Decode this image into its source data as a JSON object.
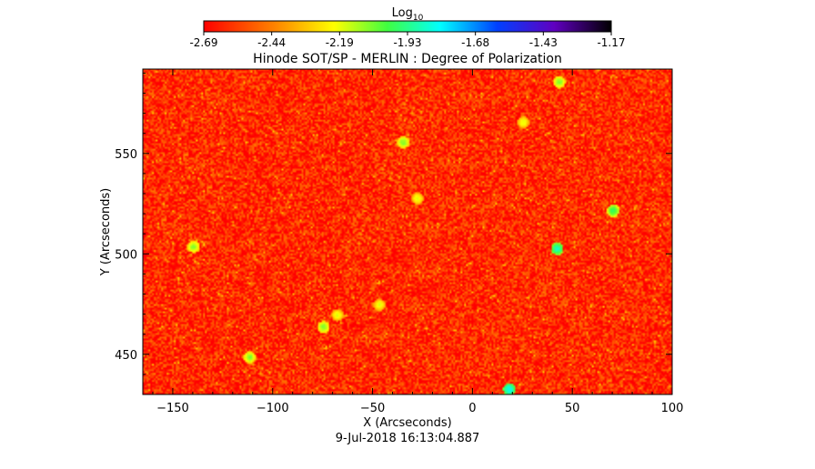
{
  "chart_data": {
    "type": "heatmap",
    "title": "Hinode SOT/SP - MERLIN : Degree of Polarization",
    "xlabel": "X (Arcseconds)",
    "ylabel": "Y (Arcseconds)",
    "xlim": [
      -165,
      100
    ],
    "ylim": [
      430,
      592
    ],
    "xticks": [
      -150,
      -100,
      -50,
      0,
      50,
      100
    ],
    "yticks": [
      450,
      500,
      550
    ],
    "colorbar": {
      "title_base": "Log",
      "title_sub": "10",
      "range": [
        -2.69,
        -1.17
      ],
      "tick_labels": [
        "-2.69",
        "-2.44",
        "-2.19",
        "-1.93",
        "-1.68",
        "-1.43",
        "-1.17"
      ],
      "colormap": "rainbow (red-low to black-high)"
    },
    "typical_value": -2.6,
    "features": [
      {
        "x": 42,
        "y": 503,
        "value": -1.9
      },
      {
        "x": 18,
        "y": 433,
        "value": -1.85
      },
      {
        "x": 70,
        "y": 522,
        "value": -2.0
      },
      {
        "x": 43,
        "y": 586,
        "value": -2.1
      },
      {
        "x": -35,
        "y": 556,
        "value": -2.1
      },
      {
        "x": -140,
        "y": 504,
        "value": -2.1
      },
      {
        "x": -75,
        "y": 464,
        "value": -2.1
      },
      {
        "x": -112,
        "y": 449,
        "value": -2.1
      },
      {
        "x": 25,
        "y": 566,
        "value": -2.2
      },
      {
        "x": -68,
        "y": 470,
        "value": -2.2
      },
      {
        "x": -28,
        "y": 528,
        "value": -2.2
      },
      {
        "x": -47,
        "y": 475,
        "value": -2.2
      }
    ],
    "grid": false,
    "legend": "colorbar top"
  },
  "footer": {
    "timestamp": "9-Jul-2018 16:13:04.887"
  }
}
